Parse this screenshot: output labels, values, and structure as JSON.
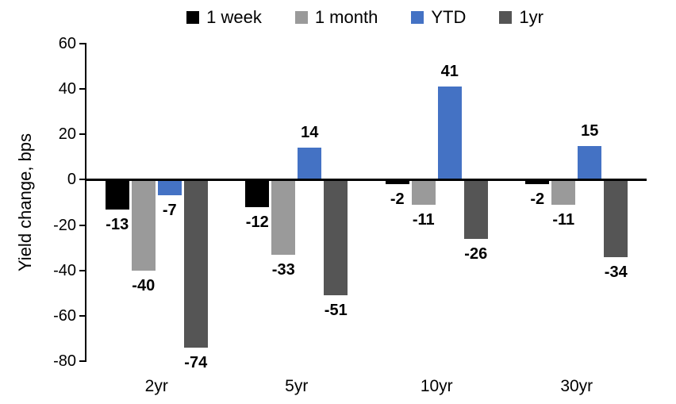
{
  "chart_data": {
    "type": "bar",
    "ylabel": "Yield change, bps",
    "categories": [
      "2yr",
      "5yr",
      "10yr",
      "30yr"
    ],
    "series": [
      {
        "name": "1 week",
        "color": "#000000",
        "values": [
          -13,
          -12,
          -2,
          -2
        ]
      },
      {
        "name": "1 month",
        "color": "#9A9A9A",
        "values": [
          -40,
          -33,
          -11,
          -11
        ]
      },
      {
        "name": "YTD",
        "color": "#4472C4",
        "values": [
          -7,
          14,
          41,
          15
        ]
      },
      {
        "name": "1yr",
        "color": "#555555",
        "values": [
          -74,
          -51,
          -26,
          -34
        ]
      }
    ],
    "ylim": [
      -80,
      60
    ],
    "yticks": [
      60,
      40,
      20,
      0,
      -20,
      -40,
      -60,
      -80
    ],
    "data_labels": true,
    "grid": false,
    "legend_position": "top",
    "axis_color": "#000000",
    "background": "#FFFFFF"
  }
}
